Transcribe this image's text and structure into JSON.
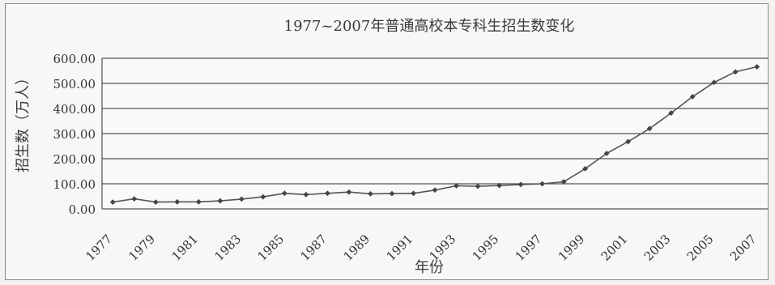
{
  "chart_data": {
    "type": "line",
    "title": "1977~2007年普通高校本专科生招生数变化",
    "xlabel": "年份",
    "ylabel": "招生数（万人）",
    "ylim": [
      0,
      600
    ],
    "y_ticks": [
      "0.00",
      "100.00",
      "200.00",
      "300.00",
      "400.00",
      "500.00",
      "600.00"
    ],
    "x_tick_labels": [
      "1977",
      "1979",
      "1981",
      "1983",
      "1985",
      "1987",
      "1989",
      "1991",
      "1993",
      "1995",
      "1997",
      "1999",
      "2001",
      "2003",
      "2005",
      "2007"
    ],
    "grid": "horizontal",
    "legend": "none",
    "series": [
      {
        "x": [
          1977,
          1978,
          1979,
          1980,
          1981,
          1982,
          1983,
          1984,
          1985,
          1986,
          1987,
          1988,
          1989,
          1990,
          1991,
          1992,
          1993,
          1994,
          1995,
          1996,
          1997,
          1998,
          1999,
          2000,
          2001,
          2002,
          2003,
          2004,
          2005,
          2006,
          2007
        ],
        "values": [
          27,
          40,
          27,
          28,
          28,
          32,
          39,
          48,
          62,
          57,
          62,
          67,
          60,
          61,
          62,
          75,
          92,
          90,
          93,
          97,
          100,
          108,
          160,
          221,
          268,
          320,
          382,
          447,
          504,
          546,
          566
        ],
        "color": "#555555"
      }
    ]
  }
}
